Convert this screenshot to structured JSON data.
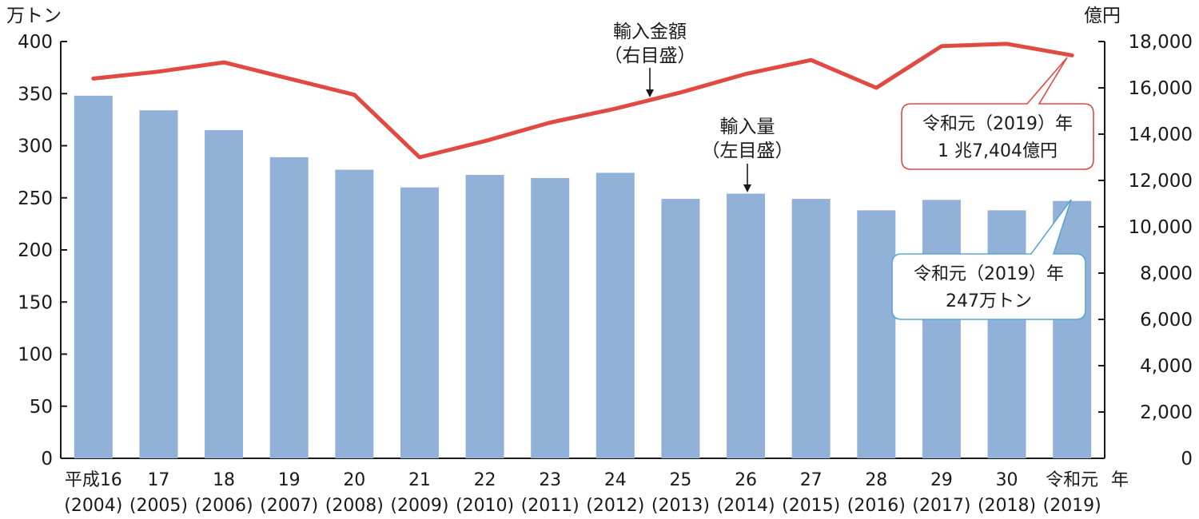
{
  "chart_data": {
    "type": "bar",
    "left_unit": "万トン",
    "right_unit": "億円",
    "x_unit": "年",
    "categories": [
      {
        "era": "平成16",
        "year": "(2004)"
      },
      {
        "era": "17",
        "year": "(2005)"
      },
      {
        "era": "18",
        "year": "(2006)"
      },
      {
        "era": "19",
        "year": "(2007)"
      },
      {
        "era": "20",
        "year": "(2008)"
      },
      {
        "era": "21",
        "year": "(2009)"
      },
      {
        "era": "22",
        "year": "(2010)"
      },
      {
        "era": "23",
        "year": "(2011)"
      },
      {
        "era": "24",
        "year": "(2012)"
      },
      {
        "era": "25",
        "year": "(2013)"
      },
      {
        "era": "26",
        "year": "(2014)"
      },
      {
        "era": "27",
        "year": "(2015)"
      },
      {
        "era": "28",
        "year": "(2016)"
      },
      {
        "era": "29",
        "year": "(2017)"
      },
      {
        "era": "30",
        "year": "(2018)"
      },
      {
        "era": "令和元",
        "year": "(2019)"
      }
    ],
    "series": [
      {
        "name_lines": [
          "輸入量",
          "（左目盛）"
        ],
        "type": "bar",
        "axis": "left",
        "color": "#92b1d9",
        "values": [
          348,
          334,
          315,
          289,
          277,
          260,
          272,
          269,
          274,
          249,
          254,
          249,
          238,
          248,
          238,
          247
        ]
      },
      {
        "name_lines": [
          "輸入金額",
          "（右目盛）"
        ],
        "type": "line",
        "axis": "right",
        "color": "#e04a43",
        "values": [
          16400,
          16700,
          17100,
          16400,
          15700,
          13000,
          13700,
          14500,
          15100,
          15800,
          16600,
          17200,
          16000,
          17800,
          17900,
          17404
        ]
      }
    ],
    "left_axis": {
      "min": 0,
      "max": 400,
      "ticks": [
        0,
        50,
        100,
        150,
        200,
        250,
        300,
        350,
        400
      ],
      "tick_labels": [
        "0",
        "50",
        "100",
        "150",
        "200",
        "250",
        "300",
        "350",
        "400"
      ]
    },
    "right_axis": {
      "min": 0,
      "max": 18000,
      "ticks": [
        0,
        2000,
        4000,
        6000,
        8000,
        10000,
        12000,
        14000,
        16000,
        18000
      ],
      "tick_labels": [
        "0",
        "2,000",
        "4,000",
        "6,000",
        "8,000",
        "10,000",
        "12,000",
        "14,000",
        "16,000",
        "18,000"
      ]
    },
    "grid": false,
    "callouts": [
      {
        "target_series": 1,
        "lines": [
          "令和元（2019）年",
          "1 兆7,404億円"
        ],
        "border_color": "#e04a43"
      },
      {
        "target_series": 0,
        "lines": [
          "令和元（2019）年",
          "247万トン"
        ],
        "border_color": "#5aa5d6"
      }
    ]
  }
}
